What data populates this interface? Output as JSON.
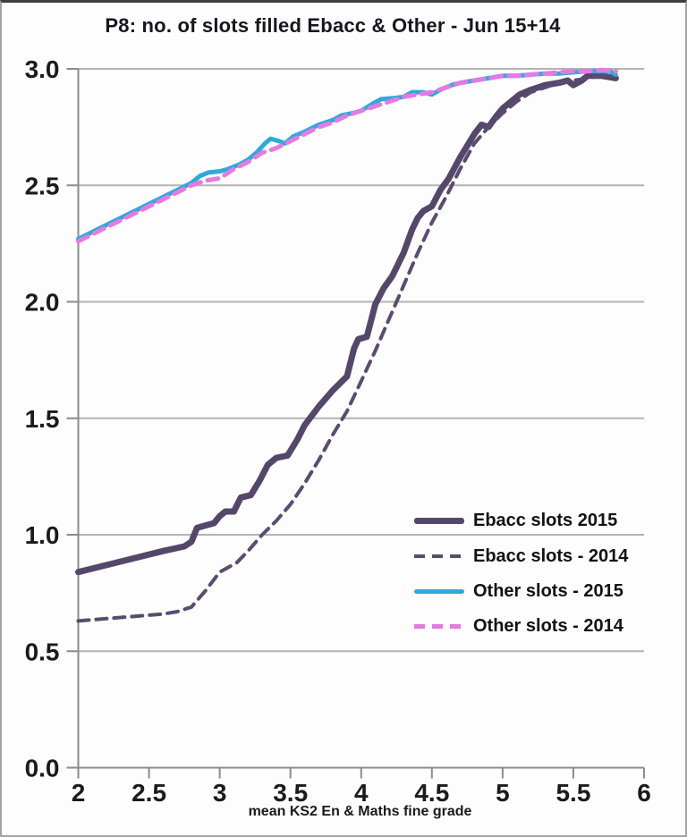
{
  "chart_data": {
    "type": "line",
    "title": "P8: no. of slots filled Ebacc & Other - Jun 15+14",
    "xlabel": "mean KS2 En & Maths fine grade",
    "ylabel": "",
    "xlim": [
      2,
      6
    ],
    "ylim": [
      0.0,
      3.0
    ],
    "x_ticks": [
      "2",
      "2.5",
      "3",
      "3.5",
      "4",
      "4.5",
      "5",
      "5.5",
      "6"
    ],
    "y_ticks": [
      "0.0",
      "0.5",
      "1.0",
      "1.5",
      "2.0",
      "2.5",
      "3.0"
    ],
    "grid": true,
    "legend_position": "inside-lower-right",
    "grid_color": "#b3b3b3",
    "axis_color": "#8c8c8c",
    "tick_text_color": "#1b1b1b",
    "series": [
      {
        "name": "Ebacc slots 2015",
        "color": "#55476a",
        "style": "solid",
        "stroke_width": 7,
        "points": [
          [
            2.0,
            0.84
          ],
          [
            2.2,
            0.87
          ],
          [
            2.4,
            0.9
          ],
          [
            2.6,
            0.93
          ],
          [
            2.75,
            0.95
          ],
          [
            2.8,
            0.97
          ],
          [
            2.84,
            1.03
          ],
          [
            2.96,
            1.05
          ],
          [
            3.0,
            1.08
          ],
          [
            3.04,
            1.1
          ],
          [
            3.1,
            1.1
          ],
          [
            3.15,
            1.16
          ],
          [
            3.22,
            1.17
          ],
          [
            3.28,
            1.23
          ],
          [
            3.34,
            1.3
          ],
          [
            3.4,
            1.33
          ],
          [
            3.48,
            1.34
          ],
          [
            3.55,
            1.41
          ],
          [
            3.6,
            1.47
          ],
          [
            3.7,
            1.55
          ],
          [
            3.8,
            1.62
          ],
          [
            3.9,
            1.68
          ],
          [
            3.95,
            1.8
          ],
          [
            3.98,
            1.84
          ],
          [
            4.04,
            1.85
          ],
          [
            4.1,
            1.99
          ],
          [
            4.16,
            2.06
          ],
          [
            4.22,
            2.11
          ],
          [
            4.3,
            2.21
          ],
          [
            4.36,
            2.31
          ],
          [
            4.4,
            2.36
          ],
          [
            4.44,
            2.39
          ],
          [
            4.5,
            2.41
          ],
          [
            4.56,
            2.48
          ],
          [
            4.62,
            2.53
          ],
          [
            4.7,
            2.62
          ],
          [
            4.76,
            2.68
          ],
          [
            4.8,
            2.72
          ],
          [
            4.85,
            2.76
          ],
          [
            4.9,
            2.75
          ],
          [
            4.96,
            2.8
          ],
          [
            5.0,
            2.83
          ],
          [
            5.06,
            2.86
          ],
          [
            5.12,
            2.89
          ],
          [
            5.2,
            2.91
          ],
          [
            5.3,
            2.93
          ],
          [
            5.4,
            2.94
          ],
          [
            5.46,
            2.95
          ],
          [
            5.5,
            2.93
          ],
          [
            5.56,
            2.95
          ],
          [
            5.6,
            2.97
          ],
          [
            5.7,
            2.97
          ],
          [
            5.8,
            2.96
          ]
        ]
      },
      {
        "name": "Ebacc slots - 2014",
        "color": "#5a4c70",
        "style": "dashed",
        "stroke_width": 4,
        "points": [
          [
            2.0,
            0.63
          ],
          [
            2.2,
            0.64
          ],
          [
            2.4,
            0.65
          ],
          [
            2.6,
            0.66
          ],
          [
            2.7,
            0.67
          ],
          [
            2.8,
            0.69
          ],
          [
            2.9,
            0.76
          ],
          [
            3.0,
            0.84
          ],
          [
            3.06,
            0.86
          ],
          [
            3.12,
            0.88
          ],
          [
            3.2,
            0.93
          ],
          [
            3.3,
            1.0
          ],
          [
            3.4,
            1.06
          ],
          [
            3.5,
            1.13
          ],
          [
            3.6,
            1.22
          ],
          [
            3.7,
            1.32
          ],
          [
            3.8,
            1.43
          ],
          [
            3.9,
            1.53
          ],
          [
            4.0,
            1.66
          ],
          [
            4.1,
            1.79
          ],
          [
            4.2,
            1.93
          ],
          [
            4.3,
            2.07
          ],
          [
            4.4,
            2.21
          ],
          [
            4.5,
            2.34
          ],
          [
            4.6,
            2.45
          ],
          [
            4.7,
            2.57
          ],
          [
            4.8,
            2.68
          ],
          [
            4.9,
            2.75
          ],
          [
            5.0,
            2.81
          ],
          [
            5.1,
            2.86
          ],
          [
            5.2,
            2.9
          ],
          [
            5.3,
            2.92
          ],
          [
            5.4,
            2.94
          ],
          [
            5.5,
            2.95
          ],
          [
            5.6,
            2.96
          ],
          [
            5.7,
            2.97
          ],
          [
            5.8,
            2.97
          ]
        ]
      },
      {
        "name": "Other slots - 2015",
        "color": "#2fa9dc",
        "style": "solid",
        "stroke_width": 5,
        "points": [
          [
            2.0,
            2.27
          ],
          [
            2.2,
            2.33
          ],
          [
            2.4,
            2.39
          ],
          [
            2.6,
            2.45
          ],
          [
            2.7,
            2.48
          ],
          [
            2.8,
            2.51
          ],
          [
            2.86,
            2.54
          ],
          [
            2.92,
            2.555
          ],
          [
            3.0,
            2.56
          ],
          [
            3.06,
            2.57
          ],
          [
            3.14,
            2.59
          ],
          [
            3.2,
            2.61
          ],
          [
            3.26,
            2.64
          ],
          [
            3.32,
            2.68
          ],
          [
            3.36,
            2.7
          ],
          [
            3.42,
            2.69
          ],
          [
            3.46,
            2.68
          ],
          [
            3.52,
            2.71
          ],
          [
            3.6,
            2.73
          ],
          [
            3.7,
            2.76
          ],
          [
            3.8,
            2.78
          ],
          [
            3.86,
            2.8
          ],
          [
            3.94,
            2.81
          ],
          [
            4.0,
            2.82
          ],
          [
            4.08,
            2.85
          ],
          [
            4.14,
            2.87
          ],
          [
            4.24,
            2.875
          ],
          [
            4.3,
            2.88
          ],
          [
            4.36,
            2.9
          ],
          [
            4.44,
            2.9
          ],
          [
            4.5,
            2.89
          ],
          [
            4.56,
            2.91
          ],
          [
            4.64,
            2.93
          ],
          [
            4.7,
            2.94
          ],
          [
            4.8,
            2.95
          ],
          [
            4.9,
            2.96
          ],
          [
            5.0,
            2.97
          ],
          [
            5.1,
            2.97
          ],
          [
            5.2,
            2.975
          ],
          [
            5.3,
            2.98
          ],
          [
            5.4,
            2.98
          ],
          [
            5.5,
            2.985
          ],
          [
            5.6,
            2.99
          ],
          [
            5.7,
            2.99
          ],
          [
            5.76,
            2.99
          ],
          [
            5.8,
            2.975
          ]
        ]
      },
      {
        "name": "Other slots - 2014",
        "color": "#e679e2",
        "style": "dashed",
        "stroke_width": 5,
        "points": [
          [
            2.0,
            2.26
          ],
          [
            2.2,
            2.32
          ],
          [
            2.4,
            2.38
          ],
          [
            2.6,
            2.44
          ],
          [
            2.8,
            2.5
          ],
          [
            2.9,
            2.52
          ],
          [
            3.0,
            2.53
          ],
          [
            3.1,
            2.57
          ],
          [
            3.2,
            2.6
          ],
          [
            3.3,
            2.64
          ],
          [
            3.4,
            2.66
          ],
          [
            3.5,
            2.69
          ],
          [
            3.6,
            2.72
          ],
          [
            3.7,
            2.75
          ],
          [
            3.8,
            2.77
          ],
          [
            3.9,
            2.8
          ],
          [
            4.0,
            2.82
          ],
          [
            4.1,
            2.84
          ],
          [
            4.2,
            2.86
          ],
          [
            4.3,
            2.88
          ],
          [
            4.4,
            2.89
          ],
          [
            4.5,
            2.9
          ],
          [
            4.6,
            2.92
          ],
          [
            4.7,
            2.94
          ],
          [
            4.8,
            2.95
          ],
          [
            4.9,
            2.96
          ],
          [
            5.0,
            2.97
          ],
          [
            5.1,
            2.97
          ],
          [
            5.2,
            2.975
          ],
          [
            5.3,
            2.98
          ],
          [
            5.4,
            2.985
          ],
          [
            5.5,
            2.99
          ],
          [
            5.6,
            2.99
          ],
          [
            5.7,
            2.995
          ],
          [
            5.8,
            2.99
          ]
        ]
      }
    ]
  }
}
